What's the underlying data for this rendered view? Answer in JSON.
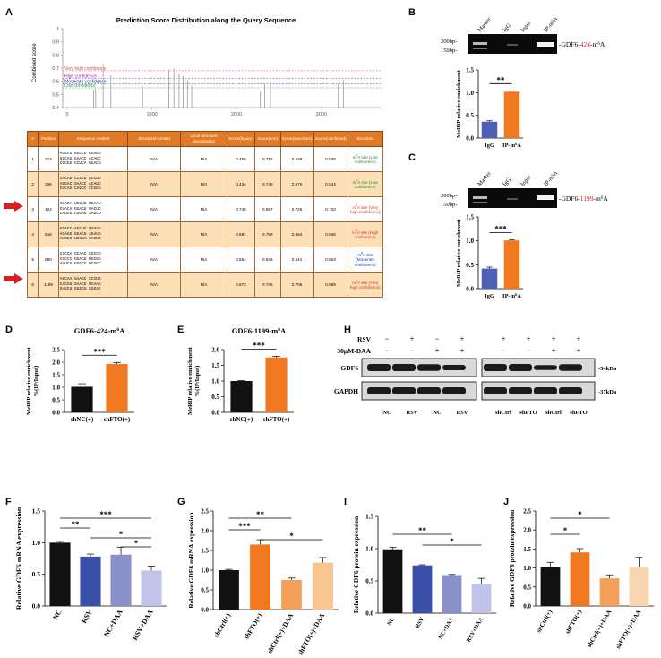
{
  "panel_letters": {
    "A": "A",
    "B": "B",
    "C": "C",
    "D": "D",
    "E": "E",
    "F": "F",
    "G": "G",
    "H": "H",
    "I": "I",
    "J": "J"
  },
  "panel_a": {
    "title": "Prediction Score Distribution along the Query Sequence",
    "ylabel": "Combined score",
    "y_ticks": [
      "1",
      "0.9",
      "0.8",
      "0.7",
      "0.6",
      "0.5",
      "0.4"
    ],
    "x_ticks": [
      "0",
      "1000",
      "2000",
      "3000"
    ],
    "legend": [
      {
        "label": "Very high confidence",
        "color": "#d9534f"
      },
      {
        "label": "High confidence",
        "color": "#9c27b0"
      },
      {
        "label": "Moderate confidence",
        "color": "#1f3fa8"
      },
      {
        "label": "Low confidence",
        "color": "#3a9a3a"
      }
    ],
    "table": {
      "headers": [
        "#",
        "Position",
        "Sequence context",
        "Structural context",
        "Local structure visualization",
        "Score(binary)",
        "Score(knn)",
        "Score(spectrum)",
        "Score(combined)",
        "Decision"
      ],
      "rows": [
        {
          "n": "1",
          "pos": "312",
          "seq": "ACGCG GGCCG GGAGG\nGCCAG GAACC ACAGC\nCGCGG CCUCA GGACG",
          "struct": "N/A",
          "vis": "N/A",
          "b": "0.450",
          "k": "0.712",
          "s": "0.639",
          "c": "0.538",
          "dec": "m6A site (Low confidence)",
          "dec_class": "green"
        },
        {
          "n": "2",
          "pos": "336",
          "seq": "CACAG CCGCG GCCUC\nAGGAC GAACC ACAGC\nCUCAG CAGCC CCGGG",
          "struct": "N/A",
          "vis": "N/A",
          "b": "0.434",
          "k": "0.749",
          "s": "0.670",
          "c": "0.544",
          "dec": "m6A site (Low confidence)",
          "dec_class": "green"
        },
        {
          "n": "3",
          "pos": "424",
          "seq": "GUACA UGCUG UCAAU\nCUACA GGACU UACUC\nCAUCG CUGAG AAGCU",
          "struct": "N/A",
          "vis": "N/A",
          "b": "0.745",
          "k": "0.657",
          "s": "0.726",
          "c": "0.733",
          "dec": "m6A site (Very high confidence)",
          "dec_class": "red"
        },
        {
          "n": "4",
          "pos": "516",
          "seq": "UCACC AGCUU UGUAG\nACAGG GGACU AGACG\nAUCUC UCGCA CACUC",
          "struct": "N/A",
          "vis": "N/A",
          "b": "0.681",
          "k": "0.759",
          "s": "0.584",
          "c": "0.646",
          "dec": "m6A site (High confidence)",
          "dec_class": "red"
        },
        {
          "n": "5",
          "pos": "890",
          "seq": "CCCCA GCAAC CGCCG\nCCCCC GGACU UGCGG\nAGUCU GGGCU UCGGC",
          "struct": "N/A",
          "vis": "N/A",
          "b": "0.554",
          "k": "0.846",
          "s": "0.541",
          "c": "0.563",
          "dec": "m6A site (Moderate confidence)",
          "dec_class": "blue"
        },
        {
          "n": "6",
          "pos": "1199",
          "seq": "AGCAA GAAGC CCCUG\nCACGU GAACU UCAAG\nGAGCU GGGCU GGGAC",
          "struct": "N/A",
          "vis": "N/A",
          "b": "0.672",
          "k": "0.745",
          "s": "0.705",
          "c": "0.689",
          "dec": "m6A site (Very high confidence)",
          "dec_class": "red"
        }
      ]
    }
  },
  "gel": {
    "lanes": [
      "Marker",
      "IgG",
      "Input",
      "IP-m6A"
    ],
    "markers": [
      "200bp-",
      "150bp-"
    ],
    "label_b": "-GDF6-424-m6A",
    "label_c": "-GDF6-1199-m6A"
  },
  "chart_data": [
    {
      "id": "B",
      "type": "bar",
      "categories": [
        "IgG",
        "IP-m6A"
      ],
      "values": [
        0.36,
        1.02
      ],
      "errors": [
        0.02,
        0.02
      ],
      "ylabel": "MeRIP relative enrichment",
      "ylim": [
        0,
        1.5
      ],
      "yticks": [
        "0.0",
        "0.5",
        "1.0",
        "1.5"
      ],
      "sig": "**",
      "colors": [
        "#4a5fb5",
        "#f07820"
      ]
    },
    {
      "id": "C",
      "type": "bar",
      "categories": [
        "IgG",
        "IP-m6A"
      ],
      "values": [
        0.42,
        1.01
      ],
      "errors": [
        0.03,
        0.01
      ],
      "ylabel": "MeRIP relative enrichment",
      "ylim": [
        0,
        1.5
      ],
      "yticks": [
        "0.0",
        "0.5",
        "1.0",
        "1.5"
      ],
      "sig": "***",
      "colors": [
        "#4a5fb5",
        "#f07820"
      ]
    },
    {
      "id": "D",
      "type": "bar",
      "title": "GDF6-424-m6A",
      "categories": [
        "shNC(+)",
        "shFTO(+)"
      ],
      "values": [
        1.02,
        1.93
      ],
      "errors": [
        0.12,
        0.06
      ],
      "ylabel": "MeRIP relative enrichment %(IP/Input)",
      "ylim": [
        0,
        2.5
      ],
      "yticks": [
        "0.0",
        "0.5",
        "1.0",
        "1.5",
        "2.0",
        "2.5"
      ],
      "sig": "***",
      "colors": [
        "#111111",
        "#f07820"
      ]
    },
    {
      "id": "E",
      "type": "bar",
      "title": "GDF6-1199-m6A",
      "categories": [
        "shNC(+)",
        "shFTO(+)"
      ],
      "values": [
        1.0,
        1.75
      ],
      "errors": [
        0.02,
        0.04
      ],
      "ylabel": "MeRIP relative enrichment %(IP/Input)",
      "ylim": [
        0,
        2.0
      ],
      "yticks": [
        "0.0",
        "0.5",
        "1.0",
        "1.5",
        "2.0"
      ],
      "sig": "***",
      "colors": [
        "#111111",
        "#f07820"
      ]
    },
    {
      "id": "F",
      "type": "bar",
      "categories": [
        "NC",
        "RSV",
        "NC+DAA",
        "RSV+DAA"
      ],
      "values": [
        1.0,
        0.78,
        0.81,
        0.56
      ],
      "errors": [
        0.02,
        0.04,
        0.12,
        0.07
      ],
      "ylabel": "Relative GDF6 mRNA expression",
      "ylim": [
        0,
        1.5
      ],
      "yticks": [
        "0.0",
        "0.5",
        "1.0",
        "1.5"
      ],
      "colors": [
        "#111111",
        "#3a4fa8",
        "#8a91c8",
        "#c2c3e8"
      ],
      "sig": [
        {
          "a": 0,
          "b": 3,
          "label": "***"
        },
        {
          "a": 0,
          "b": 1,
          "label": "**"
        },
        {
          "a": 1,
          "b": 3,
          "label": "*"
        },
        {
          "a": 2,
          "b": 3,
          "label": "*"
        }
      ]
    },
    {
      "id": "G",
      "type": "bar",
      "categories": [
        "shCtrl(+)",
        "shFTO(+)",
        "shCtrl(+)+DAA",
        "shFTO(+)+DAA"
      ],
      "values": [
        1.0,
        1.65,
        0.75,
        1.19
      ],
      "errors": [
        0.02,
        0.12,
        0.05,
        0.13
      ],
      "ylabel": "Relative GDF6 mRNA expression",
      "ylim": [
        0,
        2.5
      ],
      "yticks": [
        "0.0",
        "0.5",
        "1.0",
        "1.5",
        "2.0",
        "2.5"
      ],
      "colors": [
        "#111111",
        "#f07820",
        "#f3a15a",
        "#f8c48f"
      ],
      "sig": [
        {
          "a": 0,
          "b": 2,
          "label": "**"
        },
        {
          "a": 0,
          "b": 1,
          "label": "***"
        },
        {
          "a": 1,
          "b": 3,
          "label": "*"
        }
      ]
    },
    {
      "id": "H",
      "type": "table",
      "rows": {
        "RSV": [
          "−",
          "+",
          "−",
          "+",
          "+",
          "+",
          "+",
          "+"
        ],
        "30μM-DAA": [
          "−",
          "−",
          "+",
          "+",
          "−",
          "−",
          "+",
          "+"
        ]
      },
      "proteins": [
        "GDF6",
        "GAPDH"
      ],
      "sizes": [
        "-54kDa",
        "-37kDa"
      ],
      "lanes": [
        "NC",
        "RSV",
        "NC",
        "RSV",
        "shCtrl",
        "shFTO",
        "shCtrl",
        "shFTO"
      ]
    },
    {
      "id": "I",
      "type": "bar",
      "categories": [
        "NC",
        "RSV",
        "NC+DAA",
        "RSV+DAA"
      ],
      "values": [
        0.99,
        0.74,
        0.59,
        0.45
      ],
      "errors": [
        0.03,
        0.01,
        0.01,
        0.09
      ],
      "ylabel": "Relative GDF6 protein expression",
      "ylim": [
        0,
        1.5
      ],
      "yticks": [
        "0.0",
        "0.5",
        "1.0",
        "1.5"
      ],
      "colors": [
        "#111111",
        "#3a4fa8",
        "#8a91c8",
        "#c2c3e8"
      ],
      "sig": [
        {
          "a": 0,
          "b": 2,
          "label": "**"
        },
        {
          "a": 1,
          "b": 3,
          "label": "*"
        }
      ]
    },
    {
      "id": "J",
      "type": "bar",
      "categories": [
        "shCtrl(+)",
        "shFTO(+)",
        "shCtrl(+)+DAA",
        "shFTO(+)+DAA"
      ],
      "values": [
        1.03,
        1.41,
        0.73,
        1.03
      ],
      "errors": [
        0.12,
        0.1,
        0.09,
        0.25
      ],
      "ylabel": "Relative GDF6 protein expression",
      "ylim": [
        0,
        2.5
      ],
      "yticks": [
        "0.0",
        "0.5",
        "1.0",
        "1.5",
        "2.0",
        "2.5"
      ],
      "colors": [
        "#111111",
        "#f07820",
        "#f3a15a",
        "#f8d6b2"
      ],
      "sig": [
        {
          "a": 0,
          "b": 2,
          "label": "*"
        },
        {
          "a": 0,
          "b": 1,
          "label": "*"
        }
      ]
    }
  ]
}
